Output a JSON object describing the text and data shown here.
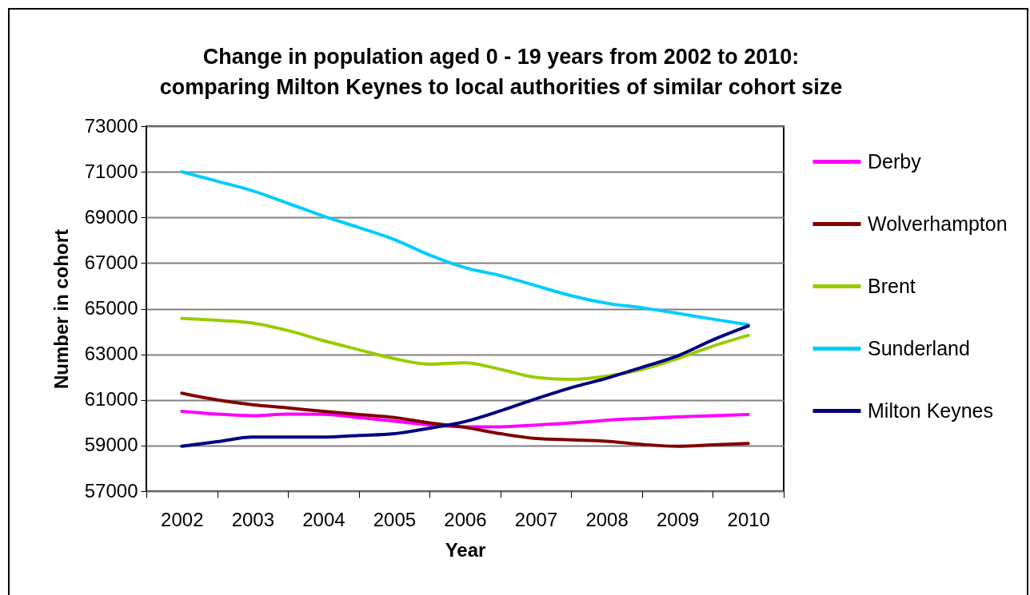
{
  "chart_data": {
    "type": "line",
    "title": "Change in population aged 0 - 19 years from 2002 to 2010:\ncomparing Milton Keynes to local authorities of similar cohort size",
    "xlabel": "Year",
    "ylabel": "Number in cohort",
    "x": [
      2002,
      2002.5,
      2003,
      2003.5,
      2004,
      2004.5,
      2005,
      2005.5,
      2006,
      2006.5,
      2007,
      2007.5,
      2008,
      2008.5,
      2009,
      2009.5,
      2010
    ],
    "xlim": [
      2001.5,
      2010.5
    ],
    "xticks": [
      {
        "value": 2001.5,
        "label": null
      },
      2002,
      {
        "value": 2002.5,
        "label": null
      },
      2003,
      {
        "value": 2003.5,
        "label": null
      },
      2004,
      {
        "value": 2004.5,
        "label": null
      },
      2005,
      {
        "value": 2005.5,
        "label": null
      },
      2006,
      {
        "value": 2006.5,
        "label": null
      },
      2007,
      {
        "value": 2007.5,
        "label": null
      },
      2008,
      {
        "value": 2008.5,
        "label": null
      },
      2009,
      {
        "value": 2009.5,
        "label": null
      },
      2010,
      {
        "value": 2010.5,
        "label": null
      }
    ],
    "ylim": [
      57000,
      73000
    ],
    "yticks": [
      57000,
      59000,
      61000,
      63000,
      65000,
      67000,
      69000,
      71000,
      73000
    ],
    "grid": "y",
    "legend": "right",
    "marker": "none",
    "line_style": "solid",
    "series": [
      {
        "name": "Derby",
        "color": "#ff00ff",
        "values": [
          60500,
          60380,
          60310,
          60380,
          60370,
          60230,
          60070,
          59910,
          59820,
          59820,
          59900,
          59990,
          60110,
          60190,
          60260,
          60310,
          60360
        ]
      },
      {
        "name": "Wolverhampton",
        "color": "#800000",
        "values": [
          61300,
          61000,
          60790,
          60650,
          60500,
          60360,
          60230,
          59990,
          59800,
          59520,
          59310,
          59250,
          59190,
          59050,
          58970,
          59030,
          59090
        ]
      },
      {
        "name": "Brent",
        "color": "#99cc00",
        "values": [
          64570,
          64490,
          64370,
          64040,
          63600,
          63200,
          62810,
          62570,
          62630,
          62340,
          61990,
          61900,
          62040,
          62340,
          62810,
          63360,
          63830
        ]
      },
      {
        "name": "Sunderland",
        "color": "#00ccff",
        "values": [
          71000,
          70590,
          70170,
          69620,
          69060,
          68560,
          68030,
          67350,
          66800,
          66450,
          66010,
          65570,
          65240,
          65040,
          64800,
          64540,
          64300
        ]
      },
      {
        "name": "Milton Keynes",
        "color": "#000080",
        "values": [
          58970,
          59170,
          59370,
          59370,
          59370,
          59440,
          59520,
          59760,
          60050,
          60520,
          61050,
          61540,
          61950,
          62430,
          62930,
          63630,
          64240
        ]
      }
    ]
  }
}
